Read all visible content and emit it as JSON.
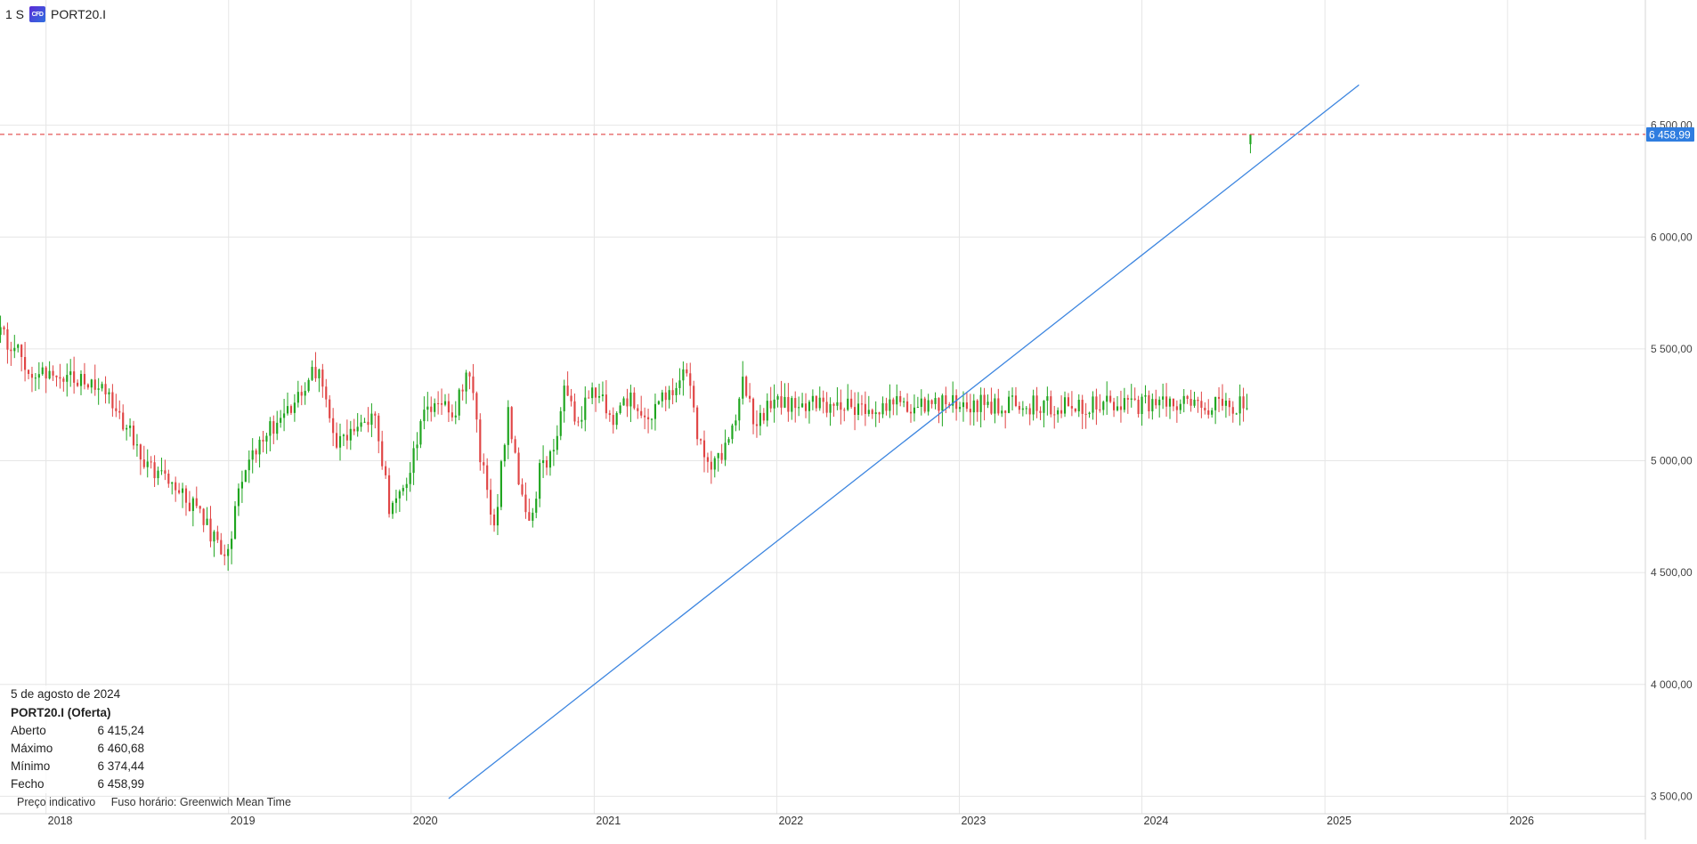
{
  "header": {
    "timeframe": "1 S",
    "badge_text": "CFD",
    "symbol": "PORT20.I"
  },
  "info_panel": {
    "date": "5 de agosto de 2024",
    "instrument": "PORT20.I (Oferta)",
    "rows": [
      {
        "label": "Aberto",
        "value": "6 415,24"
      },
      {
        "label": "Máximo",
        "value": "6 460,68"
      },
      {
        "label": "Mínimo",
        "value": "6 374,44"
      },
      {
        "label": "Fecho",
        "value": "6 458,99"
      }
    ]
  },
  "footer": {
    "price_note": "Preço indicativo",
    "timezone_note": "Fuso horário: Greenwich Mean Time"
  },
  "colors": {
    "up": "#1fa51f",
    "down": "#e04545",
    "trendline": "#3d86e0",
    "price_line": "#e04545",
    "price_tag_bg": "#2f7de0",
    "grid": "#e6e6e6"
  },
  "chart_data": {
    "type": "candlestick",
    "timeframe": "1 S",
    "symbol": "PORT20.I",
    "x_range": [
      "2017-10-01",
      "2026-09-30"
    ],
    "y_range": [
      3450,
      7000
    ],
    "x_tick_labels": [
      "2018",
      "2019",
      "2020",
      "2021",
      "2022",
      "2023",
      "2024",
      "2025",
      "2026"
    ],
    "y_tick_values": [
      3500,
      4000,
      4500,
      5000,
      5500,
      6000,
      6500
    ],
    "y_tick_labels": [
      "3 500,00",
      "4 000,00",
      "4 500,00",
      "5 000,00",
      "5 500,00",
      "6 000,00",
      "6 500,00"
    ],
    "current_price": 6458.99,
    "current_price_label": "6 458,99",
    "last_candle": {
      "date": "5 de agosto de 2024",
      "open": 6415.24,
      "high": 6460.68,
      "low": 6374.44,
      "close": 6458.99
    },
    "grid": true,
    "trendline": {
      "from": {
        "x": "2020-03-16",
        "y": 3490
      },
      "to": {
        "x": "2025-03-10",
        "y": 6680
      }
    },
    "weekly_close_path": [
      [
        "2017-10-02",
        5580
      ],
      [
        "2017-12-04",
        5400
      ],
      [
        "2018-03-05",
        5350
      ],
      [
        "2018-05-07",
        5300
      ],
      [
        "2018-07-02",
        5050
      ],
      [
        "2018-09-03",
        4880
      ],
      [
        "2018-10-29",
        4790
      ],
      [
        "2018-12-24",
        4550
      ],
      [
        "2019-02-04",
        4980
      ],
      [
        "2019-03-25",
        5150
      ],
      [
        "2019-05-06",
        5230
      ],
      [
        "2019-06-03",
        5350
      ],
      [
        "2019-07-01",
        5400
      ],
      [
        "2019-08-05",
        5050
      ],
      [
        "2019-09-16",
        5150
      ],
      [
        "2019-10-21",
        5180
      ],
      [
        "2019-11-18",
        4800
      ],
      [
        "2019-12-23",
        4900
      ],
      [
        "2020-02-03",
        5250
      ],
      [
        "2020-03-30",
        5230
      ],
      [
        "2020-04-27",
        5420
      ],
      [
        "2020-05-18",
        5030
      ],
      [
        "2020-06-15",
        4700
      ],
      [
        "2020-07-13",
        5230
      ],
      [
        "2020-08-03",
        4900
      ],
      [
        "2020-08-24",
        4720
      ],
      [
        "2020-09-14",
        4950
      ],
      [
        "2020-10-05",
        5010
      ],
      [
        "2020-11-02",
        5300
      ],
      [
        "2020-11-30",
        5150
      ],
      [
        "2020-12-28",
        5340
      ],
      [
        "2021-01-18",
        5270
      ],
      [
        "2021-02-15",
        5180
      ],
      [
        "2021-03-15",
        5300
      ],
      [
        "2021-04-12",
        5200
      ],
      [
        "2021-05-10",
        5250
      ],
      [
        "2021-06-07",
        5320
      ],
      [
        "2021-07-05",
        5400
      ],
      [
        "2021-08-02",
        5050
      ],
      [
        "2021-08-30",
        4980
      ],
      [
        "2021-09-27",
        5100
      ],
      [
        "2021-10-25",
        5350
      ],
      [
        "2021-11-22",
        5150
      ],
      [
        "2021-12-20",
        5250
      ]
    ]
  }
}
